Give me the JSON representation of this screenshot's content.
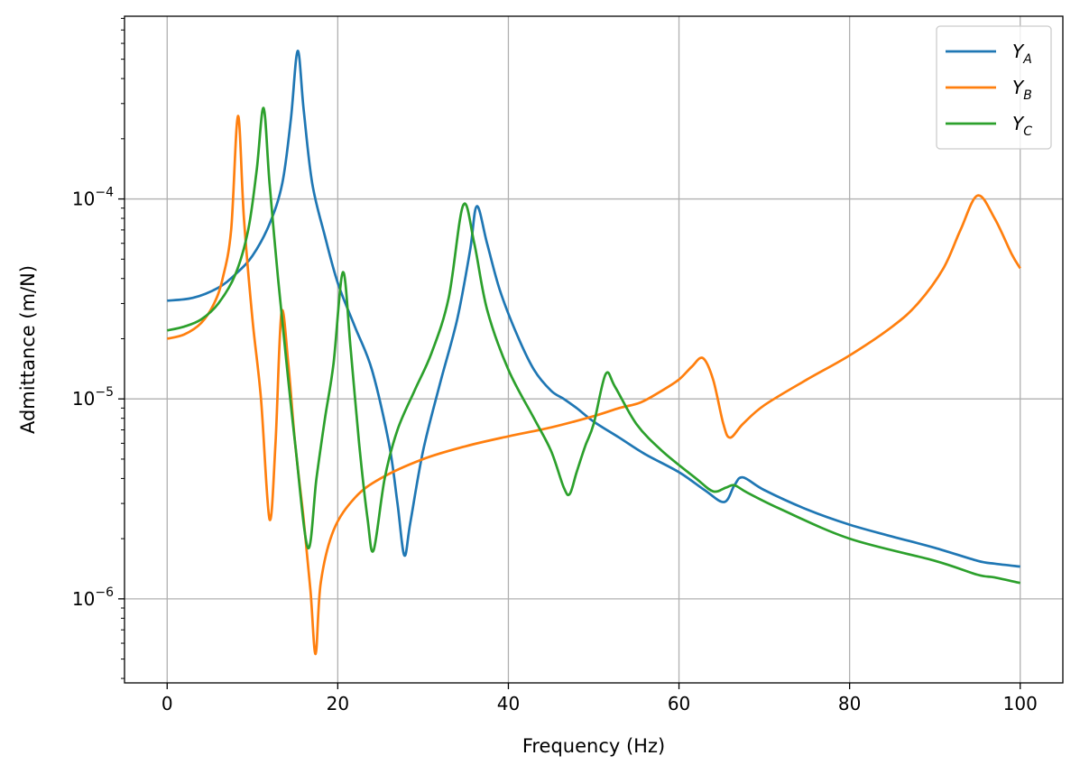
{
  "chart_data": {
    "type": "line",
    "title": "",
    "xlabel": "Frequency (Hz)",
    "ylabel": "Admittance (m/N)",
    "xlim": [
      -5,
      105
    ],
    "ylim": [
      3.8e-07,
      0.00082
    ],
    "yscale": "log",
    "grid": true,
    "legend_position": "top-right",
    "x_ticks": [
      0,
      20,
      40,
      60,
      80,
      100
    ],
    "x_tick_labels": [
      "0",
      "20",
      "40",
      "60",
      "80",
      "100"
    ],
    "y_ticks": [
      1e-06,
      1e-05,
      0.0001
    ],
    "y_tick_labels": [
      {
        "base": "10",
        "exp": "−6"
      },
      {
        "base": "10",
        "exp": "−5"
      },
      {
        "base": "10",
        "exp": "−4"
      }
    ],
    "series": [
      {
        "name": "Y_A",
        "legend_main": "Y",
        "legend_sub": "A",
        "color": "#1f77b4",
        "points": [
          [
            0,
            3.1e-05
          ],
          [
            3,
            3.2e-05
          ],
          [
            6,
            3.6e-05
          ],
          [
            8,
            4.2e-05
          ],
          [
            10,
            5.2e-05
          ],
          [
            12,
            7.5e-05
          ],
          [
            13.5,
            0.00012
          ],
          [
            14.5,
            0.00025
          ],
          [
            15.3,
            0.00055
          ],
          [
            16,
            0.00028
          ],
          [
            17,
            0.00012
          ],
          [
            18.5,
            6.5e-05
          ],
          [
            20,
            3.8e-05
          ],
          [
            22,
            2.3e-05
          ],
          [
            24,
            1.4e-05
          ],
          [
            26,
            6e-06
          ],
          [
            27,
            3e-06
          ],
          [
            27.8,
            1.65e-06
          ],
          [
            28.5,
            2.4e-06
          ],
          [
            30,
            5.5e-06
          ],
          [
            32,
            1.2e-05
          ],
          [
            34,
            2.5e-05
          ],
          [
            35.5,
            5.5e-05
          ],
          [
            36.3,
            9.2e-05
          ],
          [
            37.5,
            6e-05
          ],
          [
            39,
            3.5e-05
          ],
          [
            41,
            2.1e-05
          ],
          [
            43,
            1.4e-05
          ],
          [
            45,
            1.1e-05
          ],
          [
            46.5,
            1e-05
          ],
          [
            48,
            9e-06
          ],
          [
            50,
            7.7e-06
          ],
          [
            53,
            6.4e-06
          ],
          [
            56,
            5.3e-06
          ],
          [
            60,
            4.3e-06
          ],
          [
            63,
            3.5e-06
          ],
          [
            65.3,
            3.05e-06
          ],
          [
            66.5,
            3.7e-06
          ],
          [
            67.5,
            4.05e-06
          ],
          [
            70,
            3.5e-06
          ],
          [
            75,
            2.8e-06
          ],
          [
            80,
            2.35e-06
          ],
          [
            85,
            2.05e-06
          ],
          [
            90,
            1.8e-06
          ],
          [
            95,
            1.55e-06
          ],
          [
            97,
            1.5e-06
          ],
          [
            100,
            1.45e-06
          ]
        ]
      },
      {
        "name": "Y_B",
        "legend_main": "Y",
        "legend_sub": "B",
        "color": "#ff7f0e",
        "points": [
          [
            0,
            2e-05
          ],
          [
            2,
            2.1e-05
          ],
          [
            4,
            2.4e-05
          ],
          [
            5.5,
            3e-05
          ],
          [
            6.5,
            4e-05
          ],
          [
            7.5,
            7e-05
          ],
          [
            8.3,
            0.00026
          ],
          [
            9,
            8e-05
          ],
          [
            10,
            2.5e-05
          ],
          [
            11,
            1e-05
          ],
          [
            12,
            2.5e-06
          ],
          [
            12.7,
            6e-06
          ],
          [
            13.4,
            2.7e-05
          ],
          [
            14.2,
            1.5e-05
          ],
          [
            15,
            6e-06
          ],
          [
            16,
            2.5e-06
          ],
          [
            16.8,
            1.1e-06
          ],
          [
            17.4,
            5.3e-07
          ],
          [
            18,
            1.2e-06
          ],
          [
            19.5,
            2.2e-06
          ],
          [
            22,
            3.2e-06
          ],
          [
            25,
            4e-06
          ],
          [
            30,
            5e-06
          ],
          [
            35,
            5.8e-06
          ],
          [
            40,
            6.5e-06
          ],
          [
            45,
            7.2e-06
          ],
          [
            50,
            8.2e-06
          ],
          [
            53,
            9e-06
          ],
          [
            55.5,
            9.6e-06
          ],
          [
            58,
            1.1e-05
          ],
          [
            60,
            1.25e-05
          ],
          [
            61.5,
            1.45e-05
          ],
          [
            62.8,
            1.6e-05
          ],
          [
            64,
            1.25e-05
          ],
          [
            65.2,
            7.5e-06
          ],
          [
            66,
            6.4e-06
          ],
          [
            67.5,
            7.5e-06
          ],
          [
            70,
            9.3e-06
          ],
          [
            75,
            1.25e-05
          ],
          [
            80,
            1.65e-05
          ],
          [
            85,
            2.3e-05
          ],
          [
            88,
            3e-05
          ],
          [
            91,
            4.5e-05
          ],
          [
            93,
            7e-05
          ],
          [
            95,
            0.000104
          ],
          [
            97,
            8e-05
          ],
          [
            99,
            5.3e-05
          ],
          [
            100,
            4.5e-05
          ]
        ]
      },
      {
        "name": "Y_C",
        "legend_main": "Y",
        "legend_sub": "C",
        "color": "#2ca02c",
        "points": [
          [
            0,
            2.2e-05
          ],
          [
            2,
            2.3e-05
          ],
          [
            4,
            2.5e-05
          ],
          [
            6,
            3e-05
          ],
          [
            8,
            4.2e-05
          ],
          [
            9.5,
            7e-05
          ],
          [
            10.5,
            0.00014
          ],
          [
            11.3,
            0.000285
          ],
          [
            12,
            0.00012
          ],
          [
            13,
            4e-05
          ],
          [
            14,
            1.5e-05
          ],
          [
            15,
            6e-06
          ],
          [
            16.5,
            1.8e-06
          ],
          [
            17.5,
            4e-06
          ],
          [
            18.5,
            8e-06
          ],
          [
            19.5,
            1.5e-05
          ],
          [
            20.6,
            4.3e-05
          ],
          [
            21.5,
            1.8e-05
          ],
          [
            22.5,
            6e-06
          ],
          [
            23.5,
            2.5e-06
          ],
          [
            24.2,
            1.75e-06
          ],
          [
            25.5,
            4e-06
          ],
          [
            27,
            7e-06
          ],
          [
            29,
            1.1e-05
          ],
          [
            31,
            1.7e-05
          ],
          [
            33,
            3.2e-05
          ],
          [
            34.7,
            9.3e-05
          ],
          [
            36,
            6e-05
          ],
          [
            37.5,
            2.8e-05
          ],
          [
            40,
            1.4e-05
          ],
          [
            43,
            8e-06
          ],
          [
            45,
            5.5e-06
          ],
          [
            46.5,
            3.6e-06
          ],
          [
            47.2,
            3.35e-06
          ],
          [
            48,
            4.3e-06
          ],
          [
            49,
            5.8e-06
          ],
          [
            50,
            7.5e-06
          ],
          [
            51.4,
            1.33e-05
          ],
          [
            52.5,
            1.15e-05
          ],
          [
            55,
            7.5e-06
          ],
          [
            58,
            5.5e-06
          ],
          [
            62,
            4e-06
          ],
          [
            64,
            3.45e-06
          ],
          [
            65.5,
            3.6e-06
          ],
          [
            66.5,
            3.7e-06
          ],
          [
            68,
            3.4e-06
          ],
          [
            72,
            2.8e-06
          ],
          [
            80,
            2e-06
          ],
          [
            90,
            1.55e-06
          ],
          [
            95,
            1.32e-06
          ],
          [
            97,
            1.28e-06
          ],
          [
            100,
            1.2e-06
          ]
        ]
      }
    ]
  }
}
